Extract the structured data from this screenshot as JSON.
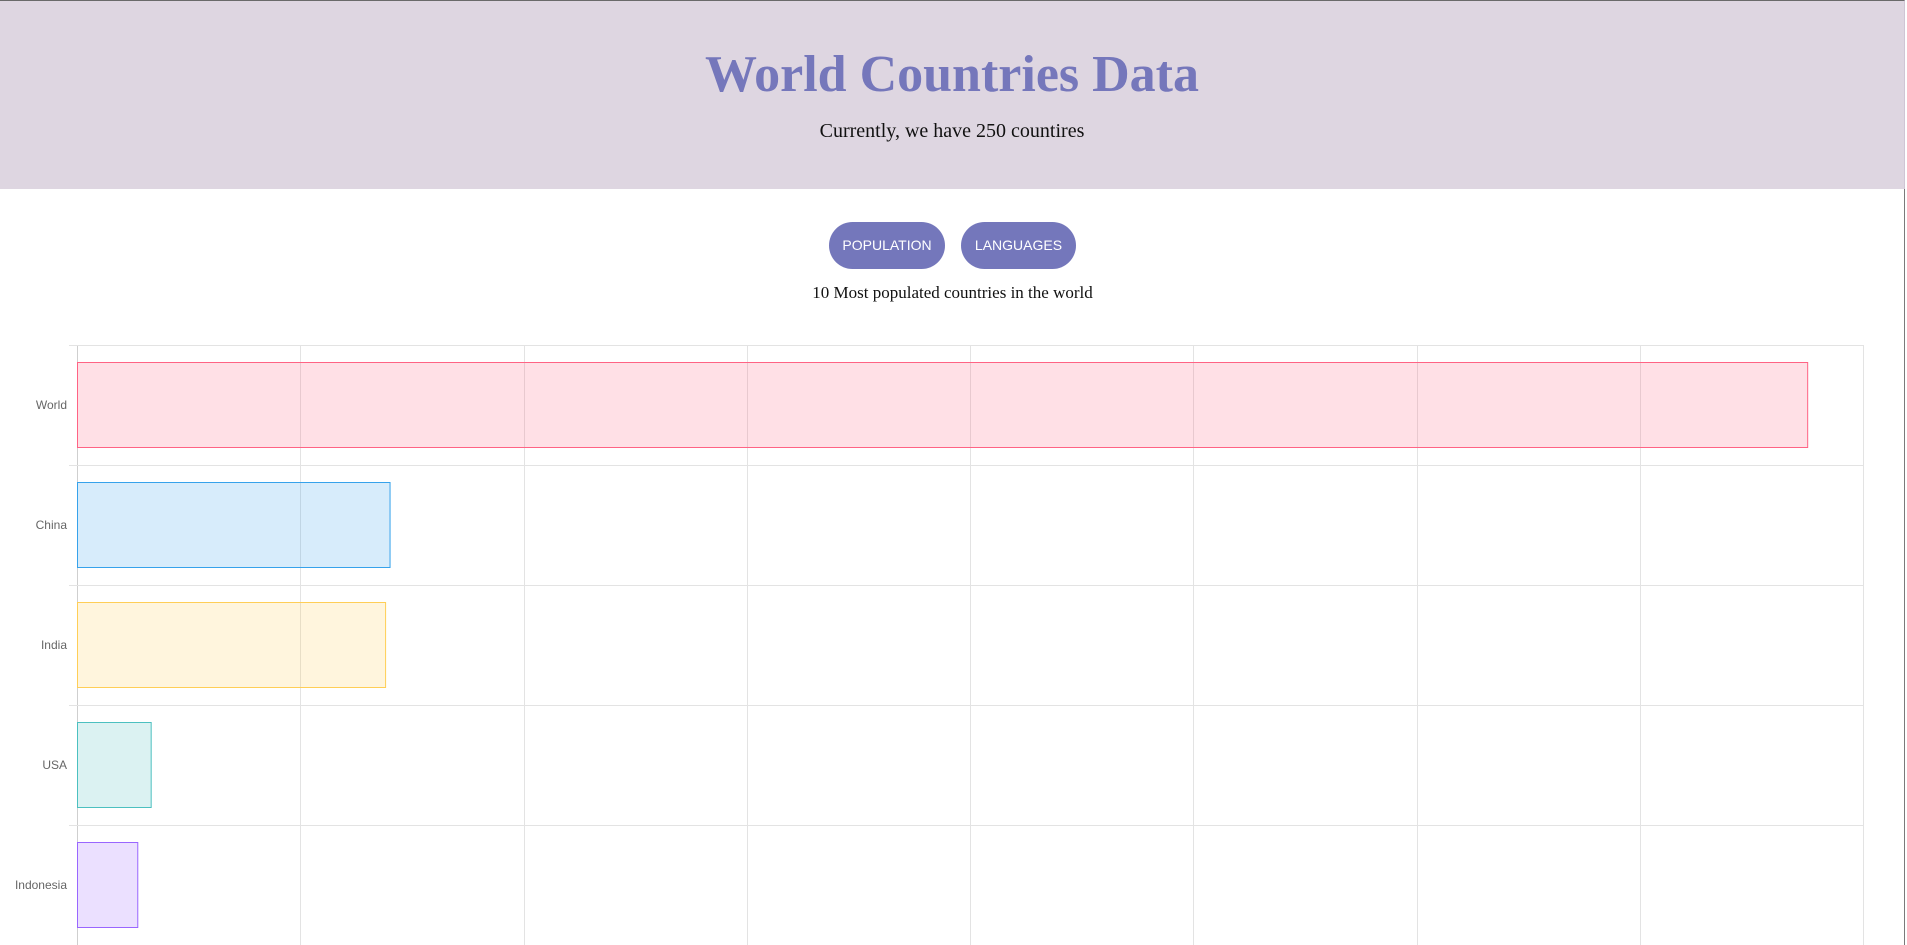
{
  "header": {
    "title": "World Countries Data",
    "subtitle": "Currently, we have 250 countires"
  },
  "toolbar": {
    "population_label": "POPULATION",
    "languages_label": "LANGUAGES"
  },
  "main": {
    "caption": "10 Most populated countries in the world"
  },
  "colors": {
    "header_bg": "#ded6e1",
    "accent": "#7477bb"
  },
  "chart_data": {
    "type": "bar",
    "orientation": "horizontal",
    "categories": [
      "World",
      "China",
      "India",
      "USA",
      "Indonesia"
    ],
    "values": [
      7.75,
      1.4,
      1.38,
      0.33,
      0.27
    ],
    "xlim": [
      0,
      8
    ],
    "grid": true,
    "bar_colors": [
      {
        "fill": "rgba(255,99,132,0.2)",
        "stroke": "#ff6384"
      },
      {
        "fill": "rgba(54,162,235,0.2)",
        "stroke": "#36a2eb"
      },
      {
        "fill": "rgba(255,206,86,0.2)",
        "stroke": "#ffce56"
      },
      {
        "fill": "rgba(75,192,192,0.2)",
        "stroke": "#4bc0c0"
      },
      {
        "fill": "rgba(153,102,255,0.2)",
        "stroke": "#9966ff"
      }
    ]
  }
}
